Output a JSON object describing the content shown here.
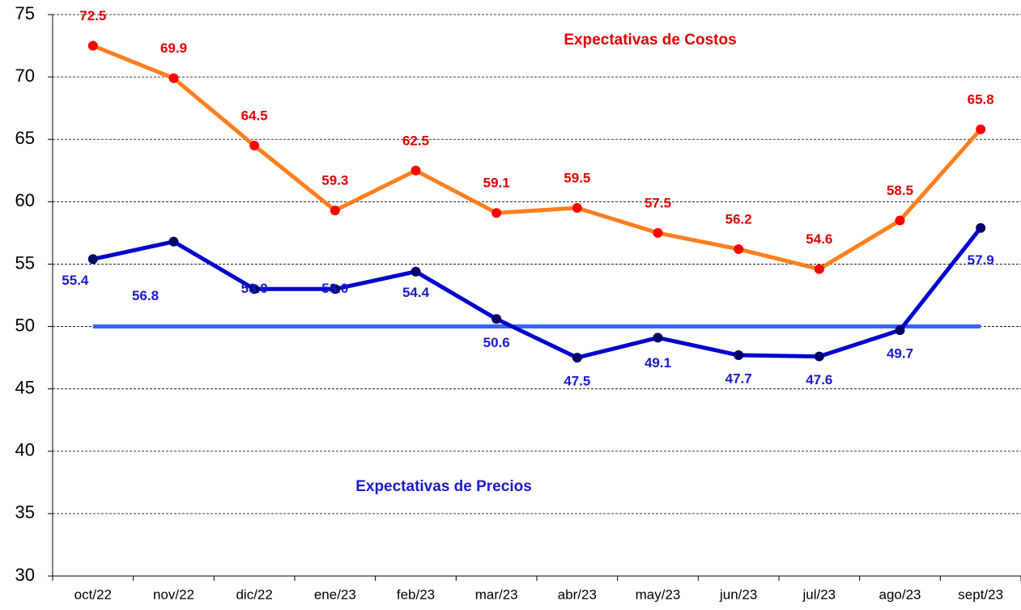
{
  "chart_data": {
    "type": "line",
    "categories": [
      "oct/22",
      "nov/22",
      "dic/22",
      "ene/23",
      "feb/23",
      "mar/23",
      "abr/23",
      "may/23",
      "jun/23",
      "jul/23",
      "ago/23",
      "sept/23"
    ],
    "series": [
      {
        "name": "Expectativas de Costos",
        "color": "#ff7f1e",
        "marker_color": "#ff0000",
        "label_color": "#e00000",
        "values": [
          72.5,
          69.9,
          64.5,
          59.3,
          62.5,
          59.1,
          59.5,
          57.5,
          56.2,
          54.6,
          58.5,
          65.8
        ],
        "value_labels": [
          "72.5",
          "69.9",
          "64.5",
          "59.3",
          "62.5",
          "59.1",
          "59.5",
          "57.5",
          "56.2",
          "54.6",
          "58.5",
          "65.8"
        ]
      },
      {
        "name": "Expectativas de Precios",
        "color": "#0000cc",
        "marker_color": "#000066",
        "label_color": "#1a1acc",
        "values": [
          55.4,
          56.8,
          53.0,
          53.0,
          54.4,
          50.6,
          47.5,
          49.1,
          47.7,
          47.6,
          49.7,
          57.9
        ],
        "value_labels": [
          "55.4",
          "56.8",
          "53.0",
          "53.0",
          "54.4",
          "50.6",
          "47.5",
          "49.1",
          "47.7",
          "47.6",
          "49.7",
          "57.9"
        ]
      }
    ],
    "reference_line": {
      "value": 50,
      "color": "#3366ff"
    },
    "ylim": [
      30,
      75
    ],
    "yticks": [
      30,
      35,
      40,
      45,
      50,
      55,
      60,
      65,
      70,
      75
    ],
    "grid": true
  }
}
